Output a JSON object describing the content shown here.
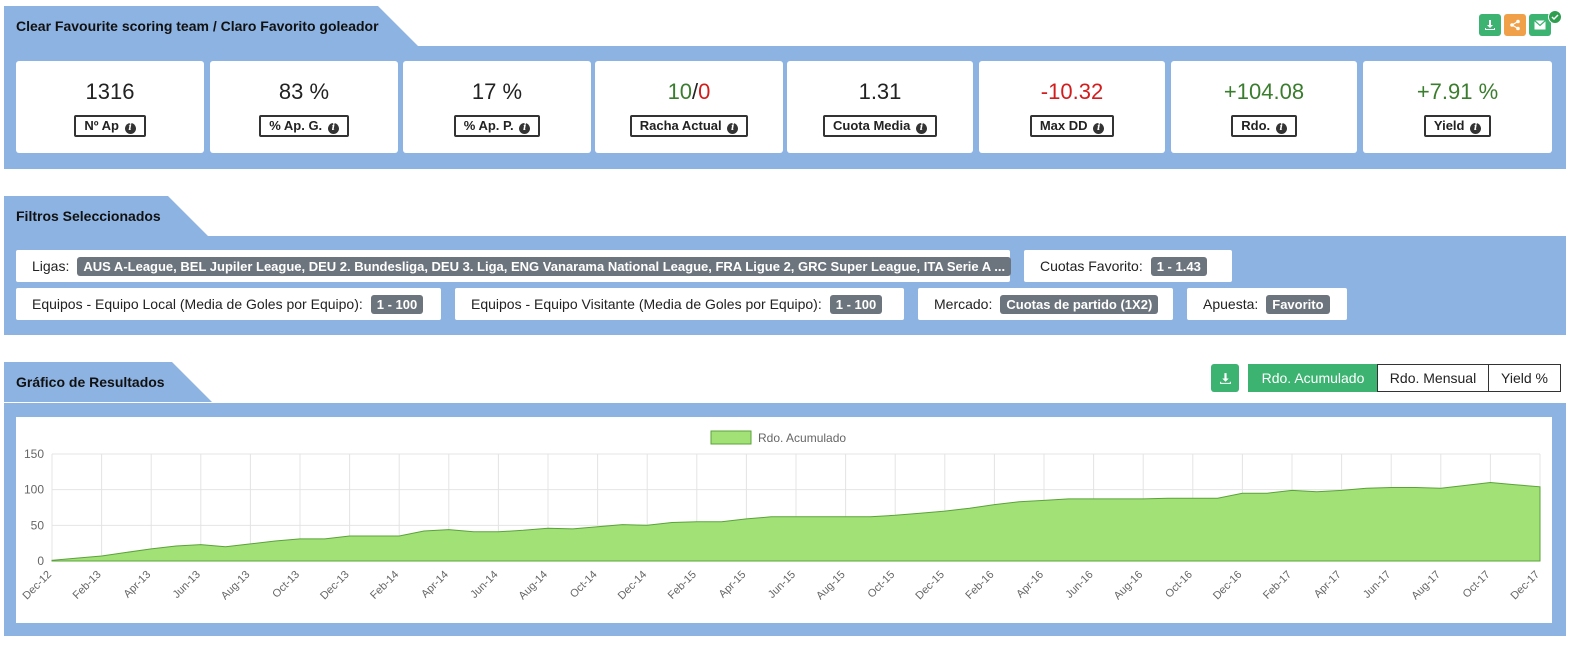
{
  "header": {
    "title": "Clear Favourite scoring team / Claro Favorito goleador"
  },
  "header_actions": {
    "download_icon": "download-icon",
    "share_icon": "share-icon",
    "mail_icon": "envelope-icon",
    "check_icon": "check-icon",
    "colors": {
      "download": "#3cb371",
      "share": "#f0a048",
      "mail": "#3cb371"
    }
  },
  "stats": [
    {
      "value": "1316",
      "label": "Nº Ap"
    },
    {
      "value": "83 %",
      "label": "% Ap. G."
    },
    {
      "value": "17 %",
      "label": "% Ap. P."
    },
    {
      "value_win": "10",
      "value_sep": "/",
      "value_loss": "0",
      "label": "Racha Actual"
    },
    {
      "value": "1.31",
      "label": "Cuota Media"
    },
    {
      "value": "-10.32",
      "label": "Max DD"
    },
    {
      "value": "+104.08",
      "label": "Rdo."
    },
    {
      "value": "+7.91 %",
      "label": "Yield"
    }
  ],
  "filters": {
    "title": "Filtros Seleccionados",
    "ligas": {
      "label": "Ligas:",
      "value": "AUS A-League, BEL Jupiler League, DEU 2. Bundesliga, DEU 3. Liga, ENG Vanarama National League, FRA Ligue 2, GRC Super League, ITA Serie A ..."
    },
    "cuotas_favorito": {
      "label": "Cuotas Favorito:",
      "value": "1 - 1.43"
    },
    "equipo_local": {
      "label": "Equipos - Equipo Local (Media de Goles por Equipo):",
      "value": "1 - 100"
    },
    "equipo_visitante": {
      "label": "Equipos - Equipo Visitante (Media de Goles por Equipo):",
      "value": "1 - 100"
    },
    "mercado": {
      "label": "Mercado:",
      "value": "Cuotas de partido (1X2)"
    },
    "apuesta": {
      "label": "Apuesta:",
      "value": "Favorito"
    }
  },
  "results": {
    "title": "Gráfico de Resultados",
    "download_icon": "download-icon",
    "tabs": [
      "Rdo. Acumulado",
      "Rdo. Mensual",
      "Yield %"
    ],
    "active_tab": 0
  },
  "chart_data": {
    "type": "area",
    "legend": "Rdo. Acumulado",
    "legend_position": "top-center",
    "fill_color": "#a1e176",
    "line_color": "#5aa33a",
    "ylim": [
      0,
      150
    ],
    "yticks": [
      0,
      50,
      100,
      150
    ],
    "grid": true,
    "x": [
      "Dec-12",
      "Jan-13",
      "Feb-13",
      "Mar-13",
      "Apr-13",
      "May-13",
      "Jun-13",
      "Jul-13",
      "Aug-13",
      "Sep-13",
      "Oct-13",
      "Nov-13",
      "Dec-13",
      "Jan-14",
      "Feb-14",
      "Mar-14",
      "Apr-14",
      "May-14",
      "Jun-14",
      "Jul-14",
      "Aug-14",
      "Sep-14",
      "Oct-14",
      "Nov-14",
      "Dec-14",
      "Jan-15",
      "Feb-15",
      "Mar-15",
      "Apr-15",
      "May-15",
      "Jun-15",
      "Jul-15",
      "Aug-15",
      "Sep-15",
      "Oct-15",
      "Nov-15",
      "Dec-15",
      "Jan-16",
      "Feb-16",
      "Mar-16",
      "Apr-16",
      "May-16",
      "Jun-16",
      "Jul-16",
      "Aug-16",
      "Sep-16",
      "Oct-16",
      "Nov-16",
      "Dec-16",
      "Jan-17",
      "Feb-17",
      "Mar-17",
      "Apr-17",
      "May-17",
      "Jun-17",
      "Jul-17",
      "Aug-17",
      "Sep-17",
      "Oct-17",
      "Nov-17",
      "Dec-17"
    ],
    "xticks": [
      "Dec-12",
      "Feb-13",
      "Apr-13",
      "Jun-13",
      "Aug-13",
      "Oct-13",
      "Dec-13",
      "Feb-14",
      "Apr-14",
      "Jun-14",
      "Aug-14",
      "Oct-14",
      "Dec-14",
      "Feb-15",
      "Apr-15",
      "Jun-15",
      "Aug-15",
      "Oct-15",
      "Dec-15",
      "Feb-16",
      "Apr-16",
      "Jun-16",
      "Aug-16",
      "Oct-16",
      "Dec-16",
      "Feb-17",
      "Apr-17",
      "Jun-17",
      "Aug-17",
      "Oct-17",
      "Dec-17"
    ],
    "values": [
      1,
      4,
      7,
      12,
      17,
      21,
      23,
      20,
      24,
      28,
      31,
      31,
      35,
      35,
      35,
      42,
      44,
      41,
      41,
      43,
      46,
      45,
      48,
      51,
      50,
      54,
      55,
      55,
      59,
      62,
      62,
      62,
      62,
      62,
      64,
      67,
      70,
      74,
      79,
      83,
      85,
      87,
      87,
      87,
      87,
      88,
      88,
      88,
      95,
      95,
      99,
      97,
      99,
      102,
      103,
      103,
      102,
      106,
      110,
      107,
      104
    ]
  }
}
